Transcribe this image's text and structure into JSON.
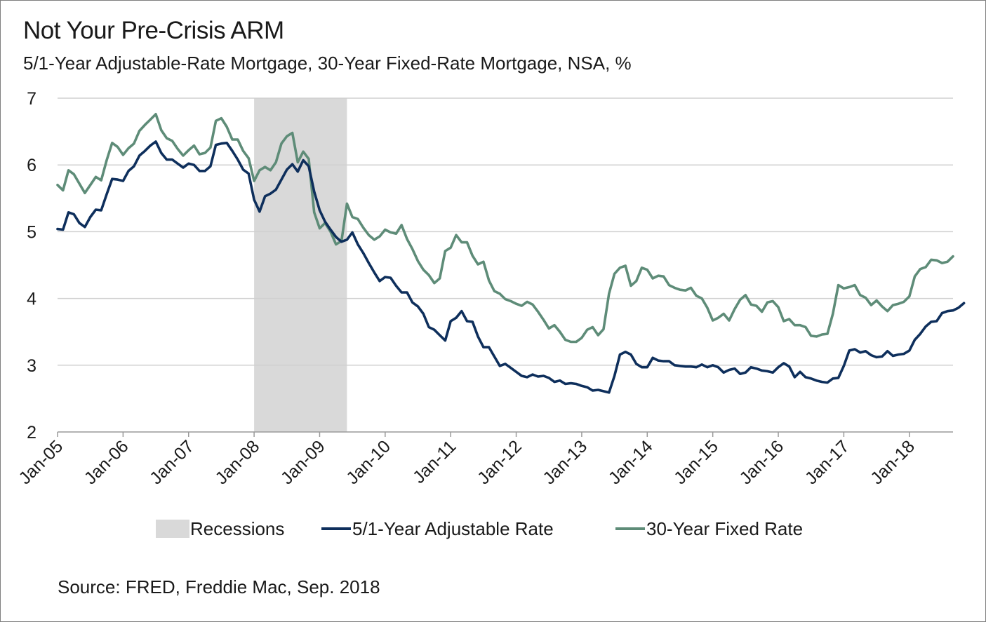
{
  "header": {
    "title": "Not Your Pre-Crisis ARM",
    "subtitle": "5/1-Year Adjustable-Rate Mortgage, 30-Year Fixed-Rate Mortgage, NSA, %"
  },
  "footer": {
    "source": "Source: FRED, Freddie Mac, Sep. 2018"
  },
  "colors": {
    "arm": "#0e2f5c",
    "fixed": "#5e8c78",
    "recession": "#d9d9d9",
    "grid": "#d0d0d0"
  },
  "chart_data": {
    "type": "line",
    "title": "Not Your Pre-Crisis ARM",
    "subtitle": "5/1-Year Adjustable-Rate Mortgage, 30-Year Fixed-Rate Mortgage, NSA, %",
    "xlabel": "",
    "ylabel": "",
    "ylim": [
      2,
      7
    ],
    "yticks": [
      2,
      3,
      4,
      5,
      6,
      7
    ],
    "grid": true,
    "legend_position": "bottom",
    "x_range": [
      "Jan-05",
      "Sep-18"
    ],
    "x_tick_labels": [
      "Jan-05",
      "Jan-06",
      "Jan-07",
      "Jan-08",
      "Jan-09",
      "Jan-10",
      "Jan-11",
      "Jan-12",
      "Jan-13",
      "Jan-14",
      "Jan-15",
      "Jan-16",
      "Jan-17",
      "Jan-18"
    ],
    "recessions": [
      {
        "name": "Recessions",
        "start": "Jan-08",
        "end": "Jun-09"
      }
    ],
    "series": [
      {
        "name": "5/1-Year Adjustable Rate",
        "start": "Jan-05",
        "frequency": "monthly",
        "values": [
          5.04,
          5.03,
          5.29,
          5.26,
          5.13,
          5.07,
          5.22,
          5.33,
          5.32,
          5.56,
          5.79,
          5.78,
          5.76,
          5.91,
          5.98,
          6.14,
          6.21,
          6.29,
          6.35,
          6.18,
          6.08,
          6.08,
          6.02,
          5.96,
          6.02,
          6.0,
          5.91,
          5.91,
          5.98,
          6.3,
          6.32,
          6.33,
          6.21,
          6.08,
          5.93,
          5.87,
          5.48,
          5.3,
          5.53,
          5.57,
          5.63,
          5.78,
          5.93,
          6.01,
          5.9,
          6.07,
          5.98,
          5.6,
          5.32,
          5.15,
          5.03,
          4.92,
          4.85,
          4.88,
          4.99,
          4.81,
          4.68,
          4.53,
          4.39,
          4.26,
          4.32,
          4.31,
          4.19,
          4.09,
          4.09,
          3.94,
          3.88,
          3.77,
          3.57,
          3.53,
          3.45,
          3.37,
          3.66,
          3.71,
          3.81,
          3.66,
          3.65,
          3.43,
          3.27,
          3.27,
          3.13,
          2.99,
          3.02,
          2.96,
          2.9,
          2.84,
          2.82,
          2.86,
          2.83,
          2.84,
          2.81,
          2.75,
          2.77,
          2.72,
          2.73,
          2.72,
          2.69,
          2.67,
          2.62,
          2.63,
          2.61,
          2.59,
          2.84,
          3.16,
          3.2,
          3.16,
          3.02,
          2.97,
          2.97,
          3.11,
          3.07,
          3.06,
          3.06,
          3.0,
          2.99,
          2.98,
          2.98,
          2.97,
          3.01,
          2.97,
          3.0,
          2.97,
          2.89,
          2.93,
          2.95,
          2.87,
          2.89,
          2.97,
          2.95,
          2.92,
          2.91,
          2.89,
          2.97,
          3.03,
          2.98,
          2.82,
          2.9,
          2.82,
          2.8,
          2.77,
          2.75,
          2.74,
          2.8,
          2.81,
          2.99,
          3.22,
          3.24,
          3.19,
          3.21,
          3.15,
          3.12,
          3.13,
          3.21,
          3.14,
          3.16,
          3.17,
          3.22,
          3.38,
          3.47,
          3.58,
          3.65,
          3.66,
          3.78,
          3.81,
          3.82,
          3.86,
          3.93
        ]
      },
      {
        "name": "30-Year Fixed Rate",
        "start": "Jan-05",
        "frequency": "monthly",
        "values": [
          5.7,
          5.62,
          5.92,
          5.86,
          5.72,
          5.58,
          5.7,
          5.82,
          5.77,
          6.07,
          6.33,
          6.27,
          6.15,
          6.25,
          6.32,
          6.51,
          6.6,
          6.68,
          6.76,
          6.52,
          6.4,
          6.36,
          6.24,
          6.14,
          6.22,
          6.29,
          6.16,
          6.18,
          6.26,
          6.66,
          6.7,
          6.57,
          6.38,
          6.38,
          6.21,
          6.1,
          5.76,
          5.92,
          5.97,
          5.92,
          6.04,
          6.32,
          6.43,
          6.48,
          6.04,
          6.2,
          6.09,
          5.29,
          5.05,
          5.13,
          5.0,
          4.81,
          4.86,
          5.42,
          5.22,
          5.19,
          5.06,
          4.95,
          4.88,
          4.93,
          5.03,
          4.99,
          4.97,
          5.1,
          4.89,
          4.74,
          4.56,
          4.43,
          4.35,
          4.23,
          4.3,
          4.71,
          4.76,
          4.95,
          4.84,
          4.84,
          4.64,
          4.51,
          4.55,
          4.27,
          4.11,
          4.07,
          3.99,
          3.96,
          3.92,
          3.89,
          3.95,
          3.91,
          3.8,
          3.68,
          3.55,
          3.6,
          3.5,
          3.38,
          3.35,
          3.35,
          3.41,
          3.53,
          3.57,
          3.45,
          3.54,
          4.07,
          4.37,
          4.46,
          4.49,
          4.19,
          4.26,
          4.46,
          4.43,
          4.3,
          4.34,
          4.33,
          4.2,
          4.16,
          4.13,
          4.12,
          4.16,
          4.04,
          4.0,
          3.86,
          3.67,
          3.71,
          3.77,
          3.67,
          3.84,
          3.98,
          4.05,
          3.91,
          3.89,
          3.8,
          3.94,
          3.96,
          3.87,
          3.66,
          3.69,
          3.6,
          3.6,
          3.57,
          3.44,
          3.43,
          3.46,
          3.47,
          3.77,
          4.2,
          4.15,
          4.17,
          4.2,
          4.05,
          4.01,
          3.9,
          3.97,
          3.88,
          3.81,
          3.9,
          3.92,
          3.95,
          4.03,
          4.33,
          4.44,
          4.47,
          4.58,
          4.57,
          4.53,
          4.55,
          4.63
        ]
      }
    ]
  }
}
